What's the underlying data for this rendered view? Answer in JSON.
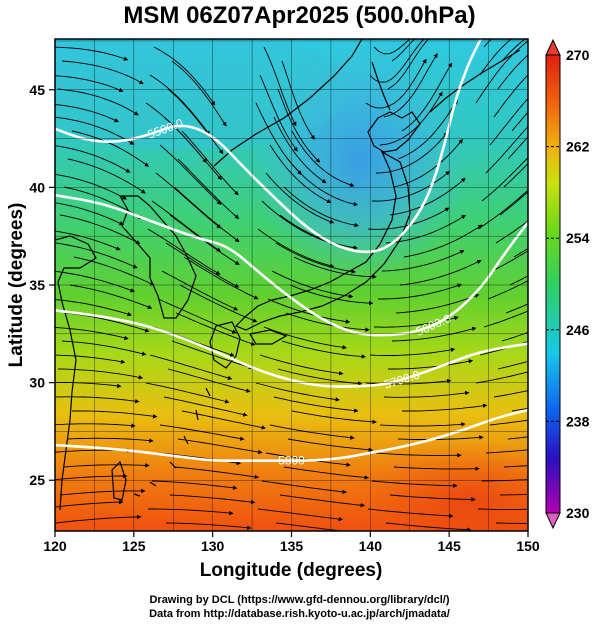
{
  "title": "MSM 06Z07Apr2025 (500.0hPa)",
  "axes": {
    "xlabel": "Longitude (degrees)",
    "ylabel": "Latitude  (degrees)",
    "xlim": [
      120,
      150
    ],
    "ylim": [
      22.4,
      47.6
    ],
    "x_ticks": [
      120,
      125,
      130,
      135,
      140,
      145,
      150
    ],
    "y_ticks": [
      25,
      30,
      35,
      40,
      45
    ],
    "grid": true
  },
  "colorbar": {
    "min": 230,
    "max": 270,
    "tick_labels": [
      "270",
      "262",
      "254",
      "246",
      "238",
      "230"
    ],
    "extend": "both"
  },
  "contours": [
    {
      "label": "5500.0",
      "points": [
        [
          120,
          43.0
        ],
        [
          122,
          42.4
        ],
        [
          124,
          42.3
        ],
        [
          126,
          42.7
        ],
        [
          128,
          43.3
        ],
        [
          130,
          42.7
        ],
        [
          132,
          41.0
        ],
        [
          134,
          39.4
        ],
        [
          136,
          37.9
        ],
        [
          138,
          36.9
        ],
        [
          140,
          36.6
        ],
        [
          141.5,
          37.1
        ],
        [
          143,
          38.5
        ],
        [
          144,
          40.2
        ],
        [
          144.8,
          42.5
        ],
        [
          145.4,
          44.5
        ],
        [
          146.2,
          46.3
        ],
        [
          147,
          47.6
        ]
      ]
    },
    {
      "label": "5600.0",
      "points": [
        [
          120,
          39.6
        ],
        [
          123,
          39.2
        ],
        [
          126,
          38.3
        ],
        [
          129,
          37.4
        ],
        [
          131,
          37.0
        ],
        [
          133,
          35.6
        ],
        [
          135,
          34.3
        ],
        [
          137,
          33.2
        ],
        [
          139,
          32.5
        ],
        [
          141,
          32.4
        ],
        [
          143,
          32.6
        ],
        [
          145,
          33.3
        ],
        [
          147,
          34.8
        ],
        [
          148.5,
          36.6
        ],
        [
          150,
          38.2
        ]
      ]
    },
    {
      "label": "5700.0",
      "points": [
        [
          120,
          33.7
        ],
        [
          123,
          33.4
        ],
        [
          126,
          32.9
        ],
        [
          129,
          32.0
        ],
        [
          131,
          31.3
        ],
        [
          133,
          30.6
        ],
        [
          135,
          30.1
        ],
        [
          137,
          29.8
        ],
        [
          139,
          29.8
        ],
        [
          141,
          29.9
        ],
        [
          143,
          30.4
        ],
        [
          145,
          31.0
        ],
        [
          147,
          31.6
        ],
        [
          150,
          32.0
        ]
      ]
    },
    {
      "label": "5800",
      "points": [
        [
          120,
          26.8
        ],
        [
          124,
          26.6
        ],
        [
          128,
          26.2
        ],
        [
          130,
          26.0
        ],
        [
          132,
          26.0
        ],
        [
          134,
          26.0
        ],
        [
          136,
          26.0
        ],
        [
          138,
          26.1
        ],
        [
          140,
          26.4
        ],
        [
          142,
          26.7
        ],
        [
          144,
          27.1
        ],
        [
          146,
          27.6
        ],
        [
          148,
          28.2
        ],
        [
          150,
          28.6
        ]
      ]
    }
  ]
}
